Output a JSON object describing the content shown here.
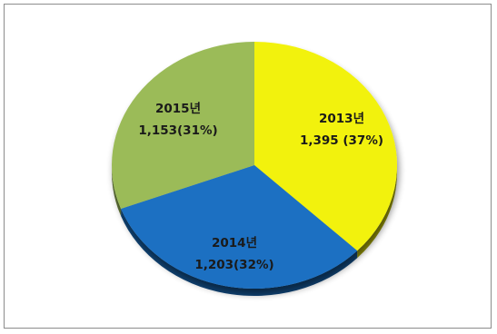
{
  "chart_data": {
    "type": "pie",
    "style": "3d-tilted",
    "legend": "none",
    "slices": [
      {
        "category": "2013년",
        "value": 1395,
        "value_label": "1,395 (37%)",
        "percent": 37,
        "color": "#f2f20d"
      },
      {
        "category": "2014년",
        "value": 1203,
        "value_label": "1,203(32%)",
        "percent": 32,
        "color": "#1a70c2"
      },
      {
        "category": "2015년",
        "value": 1153,
        "value_label": "1,153(31%)",
        "percent": 31,
        "color": "#9bbb59"
      }
    ]
  }
}
